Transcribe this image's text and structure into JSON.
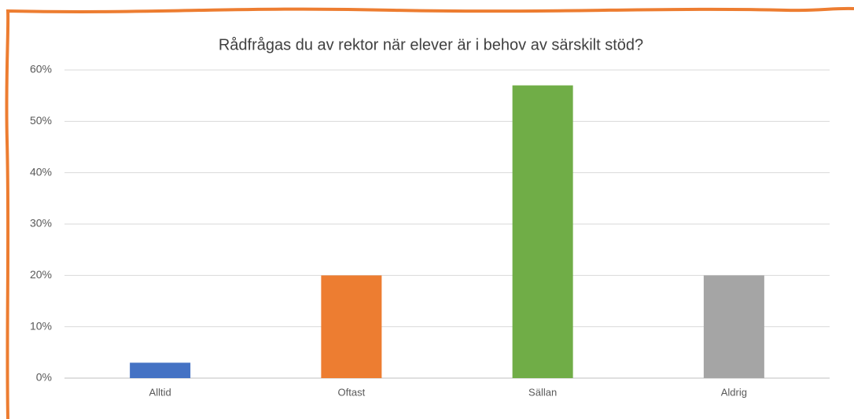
{
  "chart_data": {
    "type": "bar",
    "title": "Rådfrågas du av rektor när elever är i behov av särskilt stöd?",
    "categories": [
      "Alltid",
      "Oftast",
      "Sällan",
      "Aldrig"
    ],
    "values": [
      3,
      20,
      57,
      20
    ],
    "colors": [
      "#4472c4",
      "#ed7d31",
      "#70ad47",
      "#a5a5a5"
    ],
    "ylim": [
      0,
      60
    ],
    "yticks": [
      {
        "value": 0,
        "label": "0%"
      },
      {
        "value": 10,
        "label": "10%"
      },
      {
        "value": 20,
        "label": "20%"
      },
      {
        "value": 30,
        "label": "30%"
      },
      {
        "value": 40,
        "label": "40%"
      },
      {
        "value": 50,
        "label": "50%"
      },
      {
        "value": 60,
        "label": "60%"
      }
    ],
    "grid": true
  }
}
